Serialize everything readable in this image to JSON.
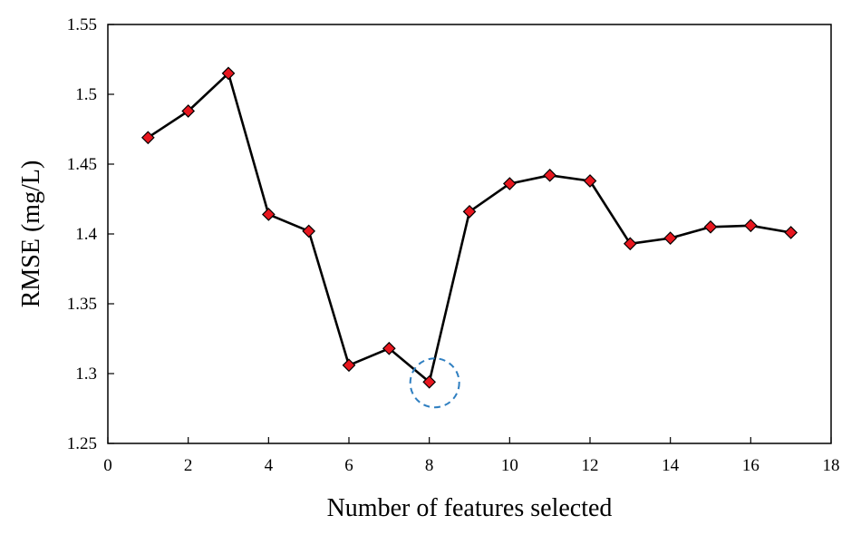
{
  "chart_data": {
    "type": "line",
    "title": "",
    "xlabel": "Number of features selected",
    "ylabel": "RMSE (mg/L)",
    "xlim": [
      0,
      18
    ],
    "ylim": [
      1.25,
      1.55
    ],
    "xticks": [
      0,
      2,
      4,
      6,
      8,
      10,
      12,
      14,
      16,
      18
    ],
    "yticks": [
      1.25,
      1.3,
      1.35,
      1.4,
      1.45,
      1.5,
      1.55
    ],
    "ytick_labels": [
      "1.25",
      "1.3",
      "1.35",
      "1.4",
      "1.45",
      "1.5",
      "1.55"
    ],
    "grid": false,
    "legend": "none",
    "series": [
      {
        "x": [
          1,
          2,
          3,
          4,
          5,
          6,
          7,
          8,
          9,
          10,
          11,
          12,
          13,
          14,
          15,
          16,
          17
        ],
        "y": [
          1.469,
          1.488,
          1.515,
          1.414,
          1.402,
          1.306,
          1.318,
          1.294,
          1.416,
          1.436,
          1.442,
          1.438,
          1.393,
          1.397,
          1.405,
          1.406,
          1.401
        ],
        "line_color": "#000000",
        "marker": "diamond",
        "marker_color": "#e8171f"
      }
    ],
    "annotations": [
      {
        "type": "dashed-circle",
        "x": 8,
        "y": 1.294,
        "color": "#2f7fc1"
      }
    ]
  }
}
